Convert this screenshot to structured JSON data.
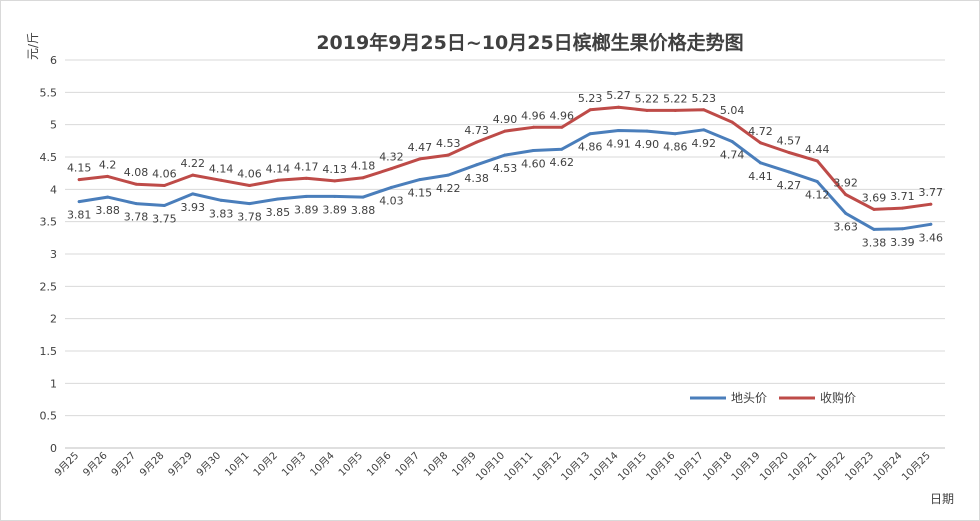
{
  "chart_data": {
    "type": "line",
    "title": "2019年9月25日~10月25日槟榔生果价格走势图",
    "ylabel": "元/斤",
    "xlabel": "日期",
    "ylim": [
      0,
      6
    ],
    "yticks": [
      "0",
      "0.5",
      "1",
      "1.5",
      "2",
      "2.5",
      "3",
      "3.5",
      "4",
      "4.5",
      "5",
      "5.5",
      "6"
    ],
    "grid": true,
    "legend_position": "bottom-right",
    "categories": [
      "9月25",
      "9月26",
      "9月27",
      "9月28",
      "9月29",
      "9月30",
      "10月1",
      "10月2",
      "10月3",
      "10月4",
      "10月5",
      "10月6",
      "10月7",
      "10月8",
      "10月9",
      "10月10",
      "10月11",
      "10月12",
      "10月13",
      "10月14",
      "10月15",
      "10月16",
      "10月17",
      "10月18",
      "10月19",
      "10月20",
      "10月21",
      "10月22",
      "10月23",
      "10月24",
      "10月25"
    ],
    "series": [
      {
        "name": "地头价",
        "color": "#4a7ebb",
        "values": [
          3.81,
          3.88,
          3.78,
          3.75,
          3.93,
          3.83,
          3.78,
          3.85,
          3.89,
          3.89,
          3.88,
          4.03,
          4.15,
          4.22,
          4.38,
          4.53,
          4.6,
          4.62,
          4.86,
          4.91,
          4.9,
          4.86,
          4.92,
          4.74,
          4.41,
          4.27,
          4.12,
          3.63,
          3.38,
          3.39,
          3.46
        ],
        "labels": [
          "3.81",
          "3.88",
          "3.78",
          "3.75",
          "3.93",
          "3.83",
          "3.78",
          "3.85",
          "3.89",
          "3.89",
          "3.88",
          "4.03",
          "4.15",
          "4.22",
          "4.38",
          "4.53",
          "4.60",
          "4.62",
          "4.86",
          "4.91",
          "4.90",
          "4.86",
          "4.92",
          "4.74",
          "4.41",
          "4.27",
          "4.12",
          "3.63",
          "3.38",
          "3.39",
          "3.46"
        ]
      },
      {
        "name": "收购价",
        "color": "#be4b48",
        "values": [
          4.15,
          4.2,
          4.08,
          4.06,
          4.22,
          4.14,
          4.06,
          4.14,
          4.17,
          4.13,
          4.18,
          4.32,
          4.47,
          4.53,
          4.73,
          4.9,
          4.96,
          4.96,
          5.23,
          5.27,
          5.22,
          5.22,
          5.23,
          5.04,
          4.72,
          4.57,
          4.44,
          3.92,
          3.69,
          3.71,
          3.77
        ],
        "labels": [
          "4.15",
          "4.2",
          "4.08",
          "4.06",
          "4.22",
          "4.14",
          "4.06",
          "4.14",
          "4.17",
          "4.13",
          "4.18",
          "4.32",
          "4.47",
          "4.53",
          "4.73",
          "4.90",
          "4.96",
          "4.96",
          "5.23",
          "5.27",
          "5.22",
          "5.22",
          "5.23",
          "5.04",
          "4.72",
          "4.57",
          "4.44",
          "3.92",
          "3.69",
          "3.71",
          "3.77"
        ]
      }
    ]
  }
}
